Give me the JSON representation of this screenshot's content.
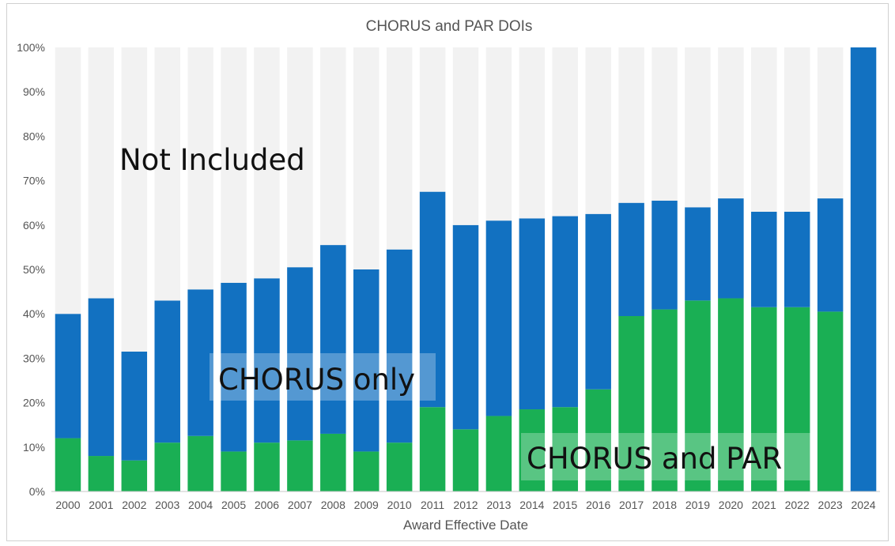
{
  "chart_data": {
    "type": "bar",
    "stacked": true,
    "percent_stacked": true,
    "title": "CHORUS and PAR DOIs",
    "xlabel": "Award Effective Date",
    "ylabel": "",
    "ylim": [
      0,
      100
    ],
    "yticks": [
      "0%",
      "10%",
      "20%",
      "30%",
      "40%",
      "50%",
      "60%",
      "70%",
      "80%",
      "90%",
      "100%"
    ],
    "categories": [
      "2000",
      "2001",
      "2002",
      "2003",
      "2004",
      "2005",
      "2006",
      "2007",
      "2008",
      "2009",
      "2010",
      "2011",
      "2012",
      "2013",
      "2014",
      "2015",
      "2016",
      "2017",
      "2018",
      "2019",
      "2020",
      "2021",
      "2022",
      "2023",
      "2024"
    ],
    "series": [
      {
        "name": "CHORUS and PAR",
        "color": "#1aaf54",
        "values": [
          12,
          8,
          7,
          11,
          12.5,
          9,
          11,
          11.5,
          13,
          9,
          11,
          19,
          14,
          17,
          18.5,
          19,
          23,
          39.5,
          41,
          43,
          43.5,
          41.5,
          41.5,
          40.5,
          0
        ]
      },
      {
        "name": "CHORUS only",
        "color": "#1271c1",
        "values": [
          28,
          35.5,
          24.5,
          32,
          33,
          38,
          37,
          39,
          42.5,
          41,
          43.5,
          48.5,
          46,
          44,
          43,
          43,
          39.5,
          25.5,
          24.5,
          21,
          22.5,
          21.5,
          21.5,
          25.5,
          100
        ]
      },
      {
        "name": "Not Included",
        "color": "#f2f2f2",
        "values": [
          60,
          56.5,
          68.5,
          57,
          54.5,
          53,
          52,
          49.5,
          44.5,
          50,
          45.5,
          32.5,
          40,
          39,
          38.5,
          38,
          37.5,
          35,
          34.5,
          36,
          34,
          37,
          37,
          34,
          0
        ]
      }
    ],
    "annotations": [
      "Not Included",
      "CHORUS only",
      "CHORUS and PAR"
    ],
    "grid": false,
    "legend": "none"
  }
}
